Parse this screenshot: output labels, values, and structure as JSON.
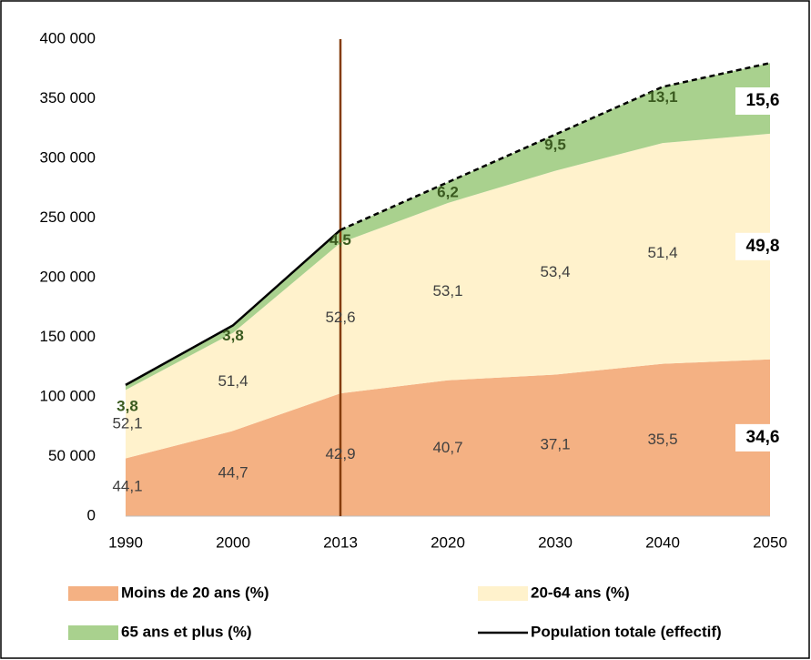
{
  "chart_data": {
    "type": "stacked-area-percent",
    "categories": [
      "1990",
      "2000",
      "2013",
      "2020",
      "2030",
      "2040",
      "2050"
    ],
    "series": [
      {
        "name": "Moins de 20 ans (%)",
        "color": "#f4b183",
        "values": [
          44.1,
          44.7,
          42.9,
          40.7,
          37.1,
          35.5,
          34.6
        ],
        "value_labels": [
          "44,1",
          "44,7",
          "42,9",
          "40,7",
          "37,1",
          "35,5",
          "34,6"
        ]
      },
      {
        "name": "20-64 ans (%)",
        "color": "#fff2cc",
        "values": [
          52.1,
          51.4,
          52.6,
          53.1,
          53.4,
          51.4,
          49.8
        ],
        "value_labels": [
          "52,1",
          "51,4",
          "52,6",
          "53,1",
          "53,4",
          "51,4",
          "49,8"
        ]
      },
      {
        "name": "65 ans et plus (%)",
        "color": "#a9d18e",
        "values": [
          3.8,
          3.8,
          4.5,
          6.2,
          9.5,
          13.1,
          15.6
        ],
        "value_labels": [
          "3,8",
          "3,8",
          "4,5",
          "6,2",
          "9,5",
          "13,1",
          "15,6"
        ]
      }
    ],
    "total": {
      "name": "Population totale (effectif)",
      "color": "#000000",
      "values": [
        110000,
        160000,
        240000,
        280000,
        320000,
        360000,
        380000
      ]
    },
    "projection_from": "2013",
    "ylim": [
      0,
      400000
    ],
    "yticks": [
      0,
      {
        "value": 50000,
        "label": "50 000"
      },
      {
        "value": 100000,
        "label": "100 000"
      },
      {
        "value": 150000,
        "label": "150 000"
      },
      {
        "value": 200000,
        "label": "200 000"
      },
      {
        "value": 250000,
        "label": "250 000"
      },
      {
        "value": 300000,
        "label": "300 000"
      },
      {
        "value": 350000,
        "label": "350 000"
      },
      {
        "value": 400000,
        "label": "400 000"
      }
    ]
  }
}
